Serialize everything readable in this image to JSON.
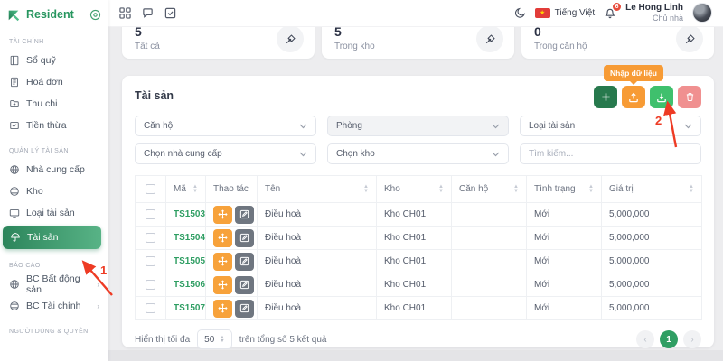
{
  "brand": {
    "name": "Resident"
  },
  "topbar": {
    "language": "Tiếng Việt",
    "notification_count": "6",
    "user_name": "Le Hong Linh",
    "user_role": "Chủ nhà"
  },
  "stats": {
    "cards": [
      {
        "value": "5",
        "label": "Tất cả"
      },
      {
        "value": "5",
        "label": "Trong kho"
      },
      {
        "value": "0",
        "label": "Trong căn hộ"
      }
    ]
  },
  "sidebar": {
    "sections": [
      {
        "label": "TÀI CHÍNH",
        "items": [
          {
            "label": "Sổ quỹ"
          },
          {
            "label": "Hoá đơn"
          },
          {
            "label": "Thu chi"
          },
          {
            "label": "Tiền thừa"
          }
        ]
      },
      {
        "label": "QUẢN LÝ TÀI SẢN",
        "items": [
          {
            "label": "Nhà cung cấp"
          },
          {
            "label": "Kho"
          },
          {
            "label": "Loại tài sản"
          },
          {
            "label": "Tài sản",
            "active": true
          }
        ]
      },
      {
        "label": "BÁO CÁO",
        "items": [
          {
            "label": "BC Bất động sản",
            "expandable": true
          },
          {
            "label": "BC Tài chính",
            "expandable": true
          }
        ]
      },
      {
        "label": "NGƯỜI DÙNG & QUYỀN",
        "items": []
      }
    ]
  },
  "panel": {
    "title": "Tài sản",
    "toolbar": {
      "import_tooltip": "Nhập dữ liệu"
    },
    "filters": {
      "apartment": "Căn hộ",
      "room": "Phòng",
      "asset_type": "Loại tài sản",
      "supplier": "Chọn nhà cung cấp",
      "warehouse": "Chọn kho",
      "search_placeholder": "Tìm kiếm..."
    },
    "table": {
      "columns": [
        "Mã",
        "Thao tác",
        "Tên",
        "Kho",
        "Căn hộ",
        "Tình trạng",
        "Giá trị"
      ],
      "rows": [
        {
          "code": "TS1503",
          "name": "Điều hoà",
          "warehouse": "Kho CH01",
          "apartment": "",
          "status": "Mới",
          "value": "5,000,000"
        },
        {
          "code": "TS1504",
          "name": "Điều hoà",
          "warehouse": "Kho CH01",
          "apartment": "",
          "status": "Mới",
          "value": "5,000,000"
        },
        {
          "code": "TS1505",
          "name": "Điều hoà",
          "warehouse": "Kho CH01",
          "apartment": "",
          "status": "Mới",
          "value": "5,000,000"
        },
        {
          "code": "TS1506",
          "name": "Điều hoà",
          "warehouse": "Kho CH01",
          "apartment": "",
          "status": "Mới",
          "value": "5,000,000"
        },
        {
          "code": "TS1507",
          "name": "Điều hoà",
          "warehouse": "Kho CH01",
          "apartment": "",
          "status": "Mới",
          "value": "5,000,000"
        }
      ]
    },
    "pagination": {
      "page_size_label": "Hiển thị tối đa",
      "page_size": "50",
      "total_label": "trên tổng số 5 kết quả",
      "current_page": "1"
    }
  },
  "annotations": {
    "step1": "1",
    "step2": "2"
  },
  "colors": {
    "brand_green": "#2f9e63",
    "active_gradient_start": "#2c855b",
    "active_gradient_end": "#58b386",
    "accent_orange": "#f79b35",
    "export_green": "#3fc06d",
    "danger_red": "#e4504d",
    "annotation_red": "#ee3b24"
  }
}
